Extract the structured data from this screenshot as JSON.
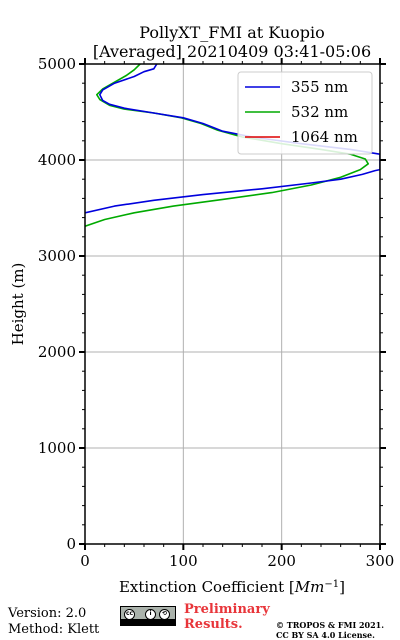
{
  "chart_data": {
    "type": "line",
    "title": "PollyXT_FMI at Kuopio",
    "subtitle": "[Averaged] 20210409 03:41-05:06",
    "xlabel": "Extinction Coefficient [",
    "xlabel_unit": "Mm",
    "xlabel_exp": "−1",
    "xlabel_close": "]",
    "ylabel": "Height (m)",
    "xlim": [
      0,
      300
    ],
    "ylim": [
      0,
      5000
    ],
    "xticks": [
      "0",
      "100",
      "200",
      "300"
    ],
    "yticks": [
      "0",
      "1000",
      "2000",
      "3000",
      "4000",
      "5000"
    ],
    "xtick_values": [
      0,
      100,
      200,
      300
    ],
    "ytick_values": [
      0,
      1000,
      2000,
      3000,
      4000,
      5000
    ],
    "grid": true,
    "legend_position": "top-right",
    "series": [
      {
        "name": "355 nm",
        "color": "#0000dd",
        "points": [
          [
            0,
            3450
          ],
          [
            30,
            3520
          ],
          [
            70,
            3580
          ],
          [
            120,
            3640
          ],
          [
            180,
            3700
          ],
          [
            230,
            3760
          ],
          [
            260,
            3800
          ],
          [
            282,
            3850
          ],
          [
            295,
            3890
          ],
          [
            300,
            3900
          ],
          [
            300,
            4060
          ],
          [
            270,
            4110
          ],
          [
            220,
            4170
          ],
          [
            170,
            4240
          ],
          [
            140,
            4300
          ],
          [
            120,
            4380
          ],
          [
            100,
            4440
          ],
          [
            70,
            4490
          ],
          [
            40,
            4540
          ],
          [
            25,
            4580
          ],
          [
            18,
            4620
          ],
          [
            15,
            4680
          ],
          [
            18,
            4730
          ],
          [
            30,
            4800
          ],
          [
            50,
            4870
          ],
          [
            60,
            4920
          ],
          [
            70,
            4950
          ],
          [
            73,
            5000
          ]
        ]
      },
      {
        "name": "532 nm",
        "color": "#00aa00",
        "points": [
          [
            0,
            3310
          ],
          [
            20,
            3380
          ],
          [
            50,
            3450
          ],
          [
            90,
            3520
          ],
          [
            140,
            3590
          ],
          [
            190,
            3660
          ],
          [
            230,
            3740
          ],
          [
            260,
            3820
          ],
          [
            280,
            3900
          ],
          [
            288,
            3960
          ],
          [
            285,
            4010
          ],
          [
            270,
            4060
          ],
          [
            240,
            4110
          ],
          [
            200,
            4170
          ],
          [
            160,
            4240
          ],
          [
            135,
            4310
          ],
          [
            118,
            4380
          ],
          [
            98,
            4440
          ],
          [
            70,
            4490
          ],
          [
            40,
            4530
          ],
          [
            25,
            4570
          ],
          [
            15,
            4630
          ],
          [
            12,
            4680
          ],
          [
            18,
            4740
          ],
          [
            30,
            4810
          ],
          [
            42,
            4880
          ],
          [
            50,
            4940
          ],
          [
            56,
            5000
          ]
        ]
      },
      {
        "name": "1064 nm",
        "color": "#dd0000",
        "points": []
      }
    ]
  },
  "footer": {
    "version": "Version: 2.0",
    "method": "Method: Klett",
    "prelim_line1": "Preliminary",
    "prelim_line2": "Results.",
    "copyright1": "© TROPOS & FMI 2021.",
    "copyright2": "CC BY SA 4.0 License.",
    "badge_text": "BY SA"
  }
}
